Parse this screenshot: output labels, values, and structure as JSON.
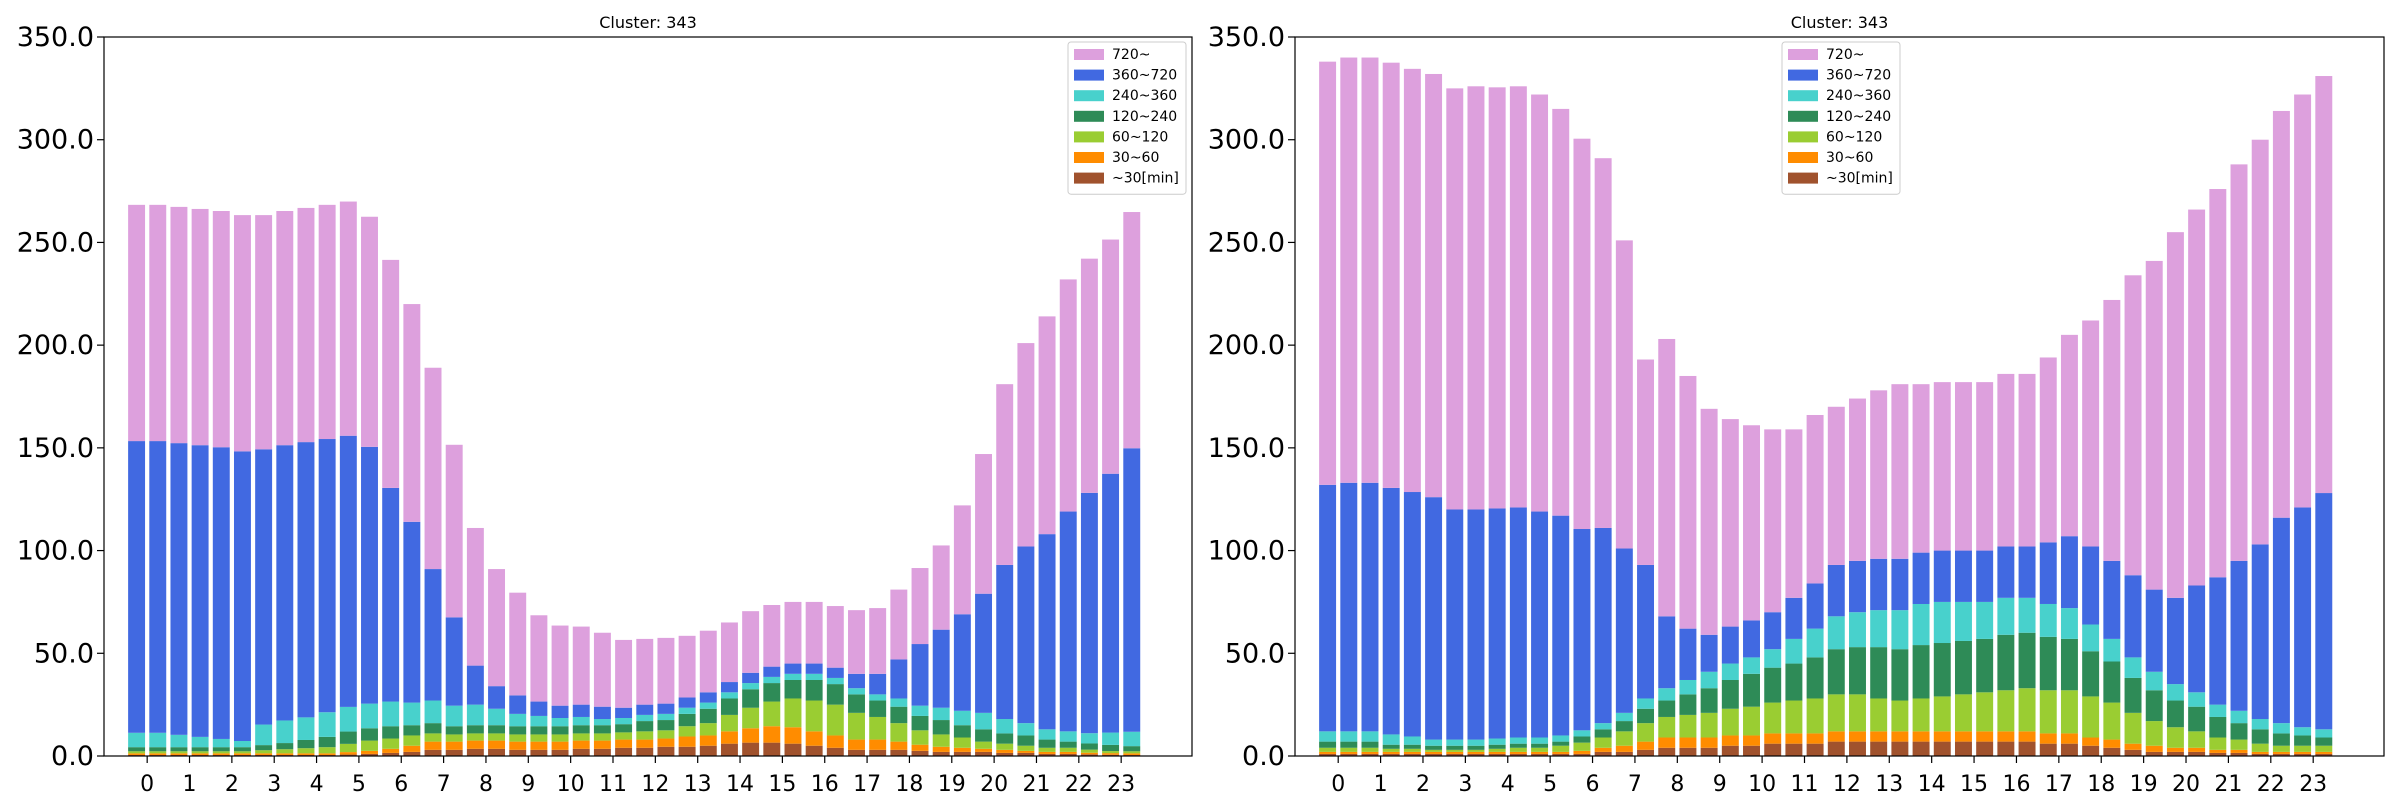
{
  "chart_data": [
    {
      "type": "bar",
      "stacked": true,
      "title": "Cluster: 343",
      "xlabel": "",
      "ylabel": "",
      "ylim": [
        0,
        350
      ],
      "yticks": [
        "0.0",
        "50.0",
        "100.0",
        "150.0",
        "200.0",
        "250.0",
        "300.0",
        "350.0"
      ],
      "xticks": [
        "0",
        "1",
        "2",
        "3",
        "4",
        "5",
        "6",
        "7",
        "8",
        "9",
        "10",
        "11",
        "12",
        "13",
        "14",
        "15",
        "16",
        "17",
        "18",
        "19",
        "20",
        "21",
        "22",
        "23"
      ],
      "bins_per_hour": 2,
      "legend_position": "top-right",
      "grid": false,
      "series": [
        {
          "name": "~30[min]",
          "color": "#a0522d",
          "values": [
            0.5,
            0.5,
            0.5,
            0.5,
            0.5,
            0.5,
            0.5,
            0.5,
            0.5,
            0.5,
            0.7,
            1,
            1.5,
            2,
            3,
            3,
            3.5,
            3.5,
            3,
            3,
            3,
            3.5,
            3.5,
            4,
            4,
            4.5,
            4.5,
            5,
            6,
            6.5,
            6.5,
            6,
            5,
            4,
            3,
            3,
            3,
            2.5,
            2,
            2,
            2,
            1.5,
            1.5,
            1,
            1,
            0.8,
            0.6,
            0.5
          ]
        },
        {
          "name": "30~60",
          "color": "#ff8c00",
          "values": [
            0.8,
            0.8,
            0.8,
            0.8,
            0.8,
            0.8,
            0.8,
            0.8,
            0.8,
            0.8,
            1.2,
            1.5,
            2,
            3,
            4,
            4,
            4,
            4,
            4,
            4,
            4,
            4,
            4,
            4,
            4,
            4,
            5,
            5,
            6,
            7,
            8,
            8,
            7,
            6,
            5,
            5,
            4,
            3,
            2.5,
            2,
            1.5,
            1.5,
            1,
            1,
            1,
            0.8,
            0.8,
            0.8
          ]
        },
        {
          "name": "60~120",
          "color": "#9acd32",
          "values": [
            1,
            1,
            1,
            1,
            1,
            1,
            1.5,
            2,
            2.5,
            3,
            4,
            5,
            5,
            5,
            4,
            3.5,
            3.5,
            3.5,
            3.5,
            3.5,
            3.5,
            3.5,
            3.5,
            3.5,
            4,
            4,
            5,
            6,
            8,
            10,
            12,
            14,
            15,
            15,
            13,
            11,
            9,
            7,
            6,
            5,
            3.5,
            3,
            2.5,
            2,
            2,
            1.5,
            1,
            1
          ]
        },
        {
          "name": "120~240",
          "color": "#2e8b57",
          "values": [
            2,
            2,
            2,
            2,
            2,
            2,
            2.5,
            3,
            4,
            5,
            6,
            6,
            6,
            5,
            5,
            4,
            4,
            4,
            4,
            4,
            4,
            4,
            4,
            4,
            5,
            5,
            6,
            7,
            8,
            9,
            9,
            9,
            10,
            10,
            9,
            8,
            8,
            7,
            7,
            6,
            6,
            5,
            5,
            4,
            3,
            3,
            3,
            2.5
          ]
        },
        {
          "name": "240~360",
          "color": "#48d1cc",
          "values": [
            7,
            7,
            6,
            5,
            4,
            3,
            10,
            11,
            11,
            12,
            12,
            12,
            12,
            11,
            11,
            10,
            10,
            8,
            6,
            5,
            4,
            4,
            3,
            3,
            3,
            3,
            3,
            3,
            3,
            3,
            3,
            3,
            3,
            3,
            3,
            3,
            4,
            5,
            6,
            7,
            8,
            7,
            6,
            5,
            5,
            5,
            6,
            7
          ]
        },
        {
          "name": "360~720",
          "color": "#4169e1",
          "values": [
            142,
            142,
            142,
            142,
            142,
            141,
            134,
            134,
            134,
            133,
            132,
            125,
            104,
            88,
            64,
            43,
            19,
            11,
            9,
            7,
            6,
            6,
            6,
            5,
            5,
            5,
            5,
            5,
            5,
            5,
            5,
            5,
            5,
            5,
            7,
            10,
            19,
            30,
            38,
            47,
            58,
            75,
            86,
            95,
            107,
            117,
            126,
            138
          ]
        },
        {
          "name": "720~",
          "color": "#dda0dd",
          "values": [
            115,
            115,
            115,
            115,
            115,
            115,
            114,
            114,
            114,
            114,
            114,
            112,
            111,
            106,
            98,
            84,
            67,
            57,
            50,
            42,
            39,
            38,
            36,
            33,
            32,
            32,
            30,
            30,
            29,
            30,
            30,
            30,
            30,
            30,
            31,
            32,
            34,
            37,
            41,
            53,
            68,
            88,
            99,
            106,
            113,
            114,
            114,
            115
          ]
        }
      ]
    },
    {
      "type": "bar",
      "stacked": true,
      "title": "Cluster: 343",
      "xlabel": "",
      "ylabel": "",
      "ylim": [
        0,
        350
      ],
      "yticks": [
        "0.0",
        "50.0",
        "100.0",
        "150.0",
        "200.0",
        "250.0",
        "300.0",
        "350.0"
      ],
      "xticks": [
        "0",
        "1",
        "2",
        "3",
        "4",
        "5",
        "6",
        "7",
        "8",
        "9",
        "10",
        "11",
        "12",
        "13",
        "14",
        "15",
        "16",
        "17",
        "18",
        "19",
        "20",
        "21",
        "22",
        "23"
      ],
      "bins_per_hour": 2,
      "legend_position": "top-center",
      "grid": false,
      "series": [
        {
          "name": "~30[min]",
          "color": "#a0522d",
          "values": [
            1,
            1,
            1,
            1,
            1,
            1,
            1,
            1,
            1,
            1,
            1,
            1,
            1,
            2,
            2,
            3,
            4,
            4,
            4,
            5,
            5,
            6,
            6,
            6,
            7,
            7,
            7,
            7,
            7,
            7,
            7,
            7,
            7,
            7,
            6,
            6,
            5,
            4,
            3,
            2,
            2,
            2,
            1.5,
            1.5,
            1,
            1,
            1,
            1
          ]
        },
        {
          "name": "30~60",
          "color": "#ff8c00",
          "values": [
            1,
            1,
            1,
            1,
            1,
            1,
            1,
            1,
            1,
            1,
            1,
            1,
            1.5,
            2,
            3,
            4,
            5,
            5,
            5,
            5,
            5,
            5,
            5,
            5,
            5,
            5,
            5,
            5,
            5,
            5,
            5,
            5,
            5,
            5,
            5,
            5,
            4,
            4,
            3,
            3,
            2,
            2,
            1.5,
            1.5,
            1,
            1,
            1,
            1
          ]
        },
        {
          "name": "60~120",
          "color": "#9acd32",
          "values": [
            2,
            2,
            2,
            1.5,
            1.5,
            1,
            1,
            1,
            1.5,
            2,
            2,
            3,
            4,
            5,
            7,
            9,
            10,
            11,
            12,
            13,
            14,
            15,
            16,
            17,
            18,
            18,
            16,
            15,
            16,
            17,
            18,
            19,
            20,
            21,
            21,
            21,
            20,
            18,
            15,
            12,
            10,
            8,
            6,
            5,
            4,
            3,
            3,
            3
          ]
        },
        {
          "name": "120~240",
          "color": "#2e8b57",
          "values": [
            3,
            3,
            3,
            2,
            2,
            2,
            2,
            2,
            2,
            2,
            2,
            2,
            3,
            4,
            5,
            7,
            8,
            10,
            12,
            14,
            16,
            17,
            18,
            20,
            22,
            23,
            25,
            25,
            26,
            26,
            26,
            26,
            27,
            27,
            26,
            25,
            22,
            20,
            17,
            15,
            13,
            12,
            10,
            8,
            7,
            6,
            5,
            4
          ]
        },
        {
          "name": "240~360",
          "color": "#48d1cc",
          "values": [
            5,
            5,
            5,
            5,
            4,
            3,
            3,
            3,
            3,
            3,
            3,
            3,
            3,
            3,
            4,
            5,
            6,
            7,
            8,
            8,
            8,
            9,
            12,
            14,
            16,
            17,
            18,
            19,
            20,
            20,
            19,
            18,
            18,
            17,
            16,
            15,
            13,
            11,
            10,
            9,
            8,
            7,
            6,
            6,
            5,
            5,
            4,
            4
          ]
        },
        {
          "name": "360~720",
          "color": "#4169e1",
          "values": [
            120,
            121,
            121,
            120,
            119,
            118,
            112,
            112,
            112,
            112,
            110,
            107,
            98,
            95,
            80,
            65,
            35,
            25,
            18,
            18,
            18,
            18,
            20,
            22,
            25,
            25,
            25,
            25,
            25,
            25,
            25,
            25,
            25,
            25,
            30,
            35,
            38,
            38,
            40,
            40,
            42,
            52,
            62,
            73,
            85,
            100,
            107,
            115
          ]
        },
        {
          "name": "720~",
          "color": "#dda0dd",
          "values": [
            206,
            207,
            207,
            207,
            206,
            206,
            205,
            206,
            205,
            205,
            203,
            198,
            190,
            180,
            150,
            100,
            135,
            123,
            110,
            101,
            95,
            89,
            82,
            82,
            77,
            79,
            82,
            85,
            82,
            82,
            82,
            82,
            84,
            84,
            90,
            98,
            110,
            127,
            146,
            160,
            178,
            183,
            189,
            193,
            197,
            198,
            201,
            203
          ]
        }
      ]
    }
  ]
}
